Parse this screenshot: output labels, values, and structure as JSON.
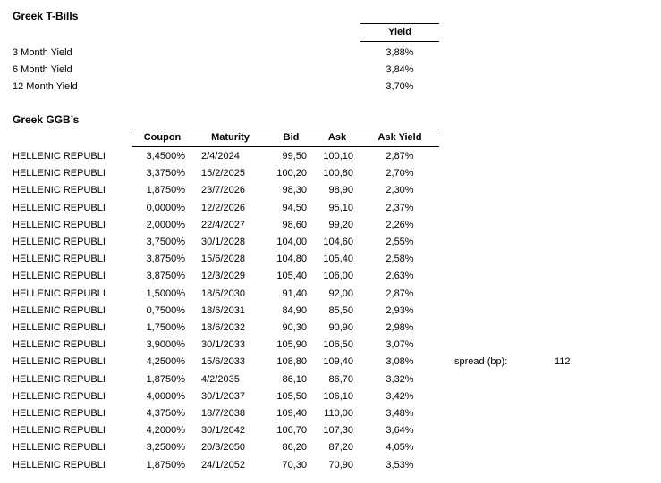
{
  "t_bills": {
    "title": "Greek T-Bills",
    "yield_header": "Yield",
    "rows": [
      {
        "label": "3 Month Yield",
        "value": "3,88%"
      },
      {
        "label": "6 Month Yield",
        "value": "3,84%"
      },
      {
        "label": "12 Month Yield",
        "value": "3,70%"
      }
    ]
  },
  "ggbs": {
    "title": "Greek GGB’s",
    "issuer_label": "HELLENIC REPUBLI",
    "columns": [
      "Coupon",
      "Maturity",
      "Bid",
      "Ask",
      "Ask Yield"
    ],
    "rows": [
      {
        "coupon": "3,4500%",
        "maturity": "2/4/2024",
        "bid": "99,50",
        "ask": "100,10",
        "ask_yield": "2,87%"
      },
      {
        "coupon": "3,3750%",
        "maturity": "15/2/2025",
        "bid": "100,20",
        "ask": "100,80",
        "ask_yield": "2,70%"
      },
      {
        "coupon": "1,8750%",
        "maturity": "23/7/2026",
        "bid": "98,30",
        "ask": "98,90",
        "ask_yield": "2,30%"
      },
      {
        "coupon": "0,0000%",
        "maturity": "12/2/2026",
        "bid": "94,50",
        "ask": "95,10",
        "ask_yield": "2,37%"
      },
      {
        "coupon": "2,0000%",
        "maturity": "22/4/2027",
        "bid": "98,60",
        "ask": "99,20",
        "ask_yield": "2,26%"
      },
      {
        "coupon": "3,7500%",
        "maturity": "30/1/2028",
        "bid": "104,00",
        "ask": "104,60",
        "ask_yield": "2,55%"
      },
      {
        "coupon": "3,8750%",
        "maturity": "15/6/2028",
        "bid": "104,80",
        "ask": "105,40",
        "ask_yield": "2,58%"
      },
      {
        "coupon": "3,8750%",
        "maturity": "12/3/2029",
        "bid": "105,40",
        "ask": "106,00",
        "ask_yield": "2,63%"
      },
      {
        "coupon": "1,5000%",
        "maturity": "18/6/2030",
        "bid": "91,40",
        "ask": "92,00",
        "ask_yield": "2,87%"
      },
      {
        "coupon": "0,7500%",
        "maturity": "18/6/2031",
        "bid": "84,90",
        "ask": "85,50",
        "ask_yield": "2,93%"
      },
      {
        "coupon": "1,7500%",
        "maturity": "18/6/2032",
        "bid": "90,30",
        "ask": "90,90",
        "ask_yield": "2,98%"
      },
      {
        "coupon": "3,9000%",
        "maturity": "30/1/2033",
        "bid": "105,90",
        "ask": "106,50",
        "ask_yield": "3,07%"
      },
      {
        "coupon": "4,2500%",
        "maturity": "15/6/2033",
        "bid": "108,80",
        "ask": "109,40",
        "ask_yield": "3,08%"
      },
      {
        "coupon": "1,8750%",
        "maturity": "4/2/2035",
        "bid": "86,10",
        "ask": "86,70",
        "ask_yield": "3,32%"
      },
      {
        "coupon": "4,0000%",
        "maturity": "30/1/2037",
        "bid": "105,50",
        "ask": "106,10",
        "ask_yield": "3,42%"
      },
      {
        "coupon": "4,3750%",
        "maturity": "18/7/2038",
        "bid": "109,40",
        "ask": "110,00",
        "ask_yield": "3,48%"
      },
      {
        "coupon": "4,2000%",
        "maturity": "30/1/2042",
        "bid": "106,70",
        "ask": "107,30",
        "ask_yield": "3,64%"
      },
      {
        "coupon": "3,2500%",
        "maturity": "20/3/2050",
        "bid": "86,20",
        "ask": "87,20",
        "ask_yield": "4,05%"
      },
      {
        "coupon": "1,8750%",
        "maturity": "24/1/2052",
        "bid": "70,30",
        "ask": "70,90",
        "ask_yield": "3,53%"
      }
    ]
  },
  "spread": {
    "label": "spread (bp):",
    "value": "112"
  },
  "colors": {
    "text": "#000000",
    "background": "#ffffff",
    "border": "#000000"
  }
}
